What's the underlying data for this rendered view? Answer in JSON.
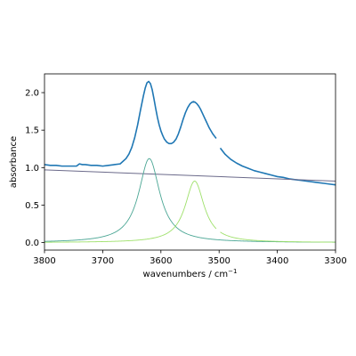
{
  "chart_data": {
    "type": "line",
    "xlabel": "wavenumbers / cm",
    "xlabel_superscript": "−1",
    "ylabel": "absorbance",
    "xlim": [
      3800,
      3300
    ],
    "ylim": [
      -0.1,
      2.25
    ],
    "xticks": [
      3800,
      3700,
      3600,
      3500,
      3400,
      3300
    ],
    "xtick_labels": [
      "3800",
      "3700",
      "3600",
      "3500",
      "3400",
      "3300"
    ],
    "yticks": [
      0.0,
      0.5,
      1.0,
      1.5,
      2.0
    ],
    "ytick_labels": [
      "0.0",
      "0.5",
      "1.0",
      "1.5",
      "2.0"
    ],
    "grid": false,
    "legend": false,
    "series": [
      {
        "role": "measured spectrum",
        "color": "#1f77b4",
        "linewidth": 1.6,
        "segments": [
          {
            "x": [
              3800,
              3790,
              3780,
              3770,
              3760,
              3750,
              3745,
              3740,
              3735,
              3730,
              3720,
              3710,
              3700,
              3690,
              3680,
              3670,
              3660,
              3655,
              3650,
              3645,
              3640,
              3635,
              3630,
              3627,
              3624,
              3621,
              3618,
              3615,
              3612,
              3609,
              3606,
              3603,
              3600,
              3597,
              3594,
              3590,
              3586,
              3582,
              3578,
              3574,
              3570,
              3566,
              3562,
              3558,
              3554,
              3550,
              3547,
              3544,
              3541,
              3538,
              3535,
              3532,
              3529,
              3526,
              3523,
              3520,
              3517,
              3514,
              3511,
              3508,
              3505
            ],
            "y": [
              1.04,
              1.03,
              1.03,
              1.02,
              1.02,
              1.02,
              1.02,
              1.05,
              1.04,
              1.04,
              1.03,
              1.03,
              1.02,
              1.03,
              1.04,
              1.05,
              1.12,
              1.18,
              1.27,
              1.4,
              1.57,
              1.77,
              1.96,
              2.06,
              2.13,
              2.15,
              2.12,
              2.04,
              1.92,
              1.79,
              1.67,
              1.57,
              1.49,
              1.43,
              1.38,
              1.34,
              1.32,
              1.32,
              1.34,
              1.38,
              1.45,
              1.54,
              1.64,
              1.73,
              1.8,
              1.85,
              1.87,
              1.88,
              1.87,
              1.85,
              1.82,
              1.78,
              1.73,
              1.68,
              1.63,
              1.58,
              1.53,
              1.49,
              1.45,
              1.42,
              1.39
            ]
          },
          {
            "x": [
              3498,
              3490,
              3480,
              3470,
              3460,
              3450,
              3440,
              3430,
              3420,
              3410,
              3400,
              3390,
              3380,
              3370,
              3360,
              3350,
              3340,
              3330,
              3320,
              3310,
              3300
            ],
            "y": [
              1.26,
              1.18,
              1.11,
              1.06,
              1.02,
              0.99,
              0.96,
              0.94,
              0.92,
              0.9,
              0.88,
              0.87,
              0.85,
              0.84,
              0.83,
              0.82,
              0.81,
              0.8,
              0.79,
              0.78,
              0.77
            ]
          }
        ]
      },
      {
        "role": "baseline",
        "color": "#6b6a8a",
        "linewidth": 1.0,
        "segments": [
          {
            "x": [
              3800,
              3300
            ],
            "y": [
              0.97,
              0.82
            ]
          }
        ]
      },
      {
        "role": "peak 1",
        "color": "#4aa694",
        "linewidth": 0.9,
        "peak": {
          "center": 3620,
          "height": 1.12,
          "hwhm": 22
        },
        "range": [
          3800,
          3300
        ]
      },
      {
        "role": "peak 2",
        "color": "#9ee06a",
        "linewidth": 0.9,
        "peak": {
          "center": 3542,
          "height": 0.82,
          "hwhm": 20
        },
        "range": [
          3800,
          3300
        ],
        "gap": [
          3505,
          3498
        ]
      }
    ]
  }
}
